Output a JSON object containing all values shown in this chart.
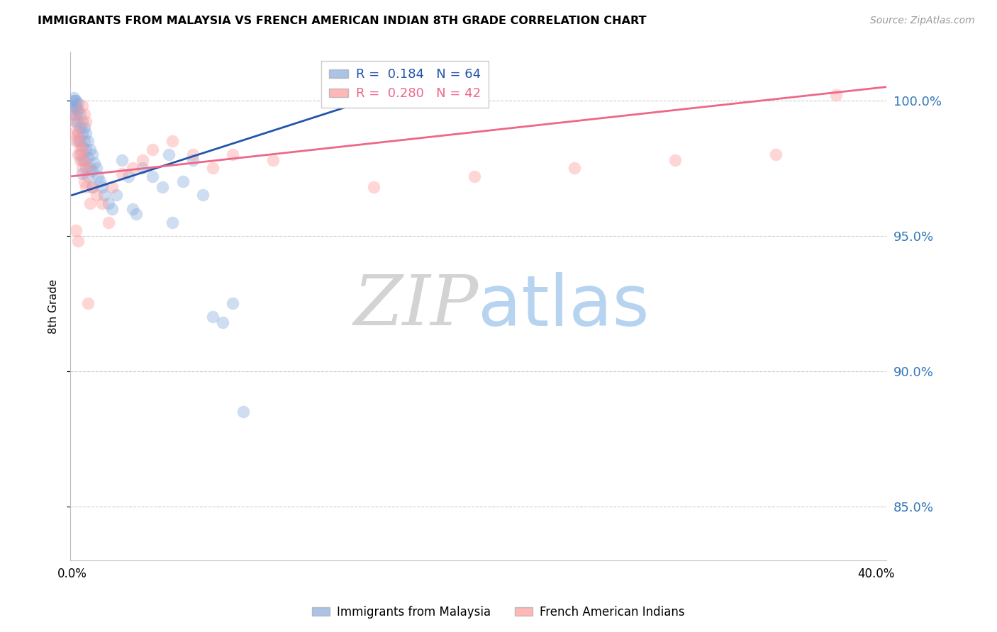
{
  "title": "IMMIGRANTS FROM MALAYSIA VS FRENCH AMERICAN INDIAN 8TH GRADE CORRELATION CHART",
  "source": "Source: ZipAtlas.com",
  "ylabel": "8th Grade",
  "yticks": [
    85.0,
    90.0,
    95.0,
    100.0
  ],
  "ytick_labels": [
    "85.0%",
    "90.0%",
    "95.0%",
    "100.0%"
  ],
  "ymin": 83.0,
  "ymax": 101.8,
  "xmin": -0.001,
  "xmax": 0.405,
  "color_blue": "#88AADD",
  "color_pink": "#FF9999",
  "line_color_blue": "#2255AA",
  "line_color_pink": "#EE6688",
  "blue_trend_x0": 0.0,
  "blue_trend_x1": 0.155,
  "blue_trend_y0": 96.5,
  "blue_trend_y1": 100.2,
  "pink_trend_x0": 0.0,
  "pink_trend_x1": 0.405,
  "pink_trend_y0": 97.2,
  "pink_trend_y1": 100.5,
  "blue_scatter_x": [
    0.0005,
    0.001,
    0.001,
    0.001,
    0.0015,
    0.0015,
    0.002,
    0.002,
    0.002,
    0.002,
    0.0025,
    0.003,
    0.003,
    0.003,
    0.003,
    0.003,
    0.004,
    0.004,
    0.004,
    0.004,
    0.005,
    0.005,
    0.005,
    0.005,
    0.005,
    0.006,
    0.006,
    0.006,
    0.007,
    0.007,
    0.007,
    0.008,
    0.008,
    0.008,
    0.009,
    0.009,
    0.01,
    0.01,
    0.01,
    0.011,
    0.012,
    0.013,
    0.014,
    0.015,
    0.016,
    0.018,
    0.02,
    0.022,
    0.025,
    0.028,
    0.03,
    0.032,
    0.035,
    0.04,
    0.045,
    0.048,
    0.05,
    0.055,
    0.06,
    0.065,
    0.07,
    0.075,
    0.08,
    0.085
  ],
  "blue_scatter_y": [
    100.0,
    100.1,
    99.8,
    99.5,
    100.0,
    99.7,
    100.0,
    99.8,
    99.5,
    99.2,
    99.7,
    99.9,
    99.6,
    99.2,
    98.8,
    98.5,
    99.5,
    99.0,
    98.5,
    98.0,
    99.2,
    98.8,
    98.3,
    97.8,
    97.3,
    99.0,
    98.5,
    97.8,
    98.8,
    98.2,
    97.5,
    98.5,
    97.9,
    97.2,
    98.2,
    97.5,
    98.0,
    97.4,
    96.8,
    97.7,
    97.5,
    97.2,
    97.0,
    96.8,
    96.5,
    96.2,
    96.0,
    96.5,
    97.8,
    97.2,
    96.0,
    95.8,
    97.5,
    97.2,
    96.8,
    98.0,
    95.5,
    97.0,
    97.8,
    96.5,
    92.0,
    91.8,
    92.5,
    88.5
  ],
  "pink_scatter_x": [
    0.001,
    0.001,
    0.002,
    0.002,
    0.003,
    0.003,
    0.004,
    0.004,
    0.005,
    0.005,
    0.006,
    0.006,
    0.007,
    0.008,
    0.009,
    0.01,
    0.012,
    0.015,
    0.018,
    0.02,
    0.025,
    0.03,
    0.035,
    0.04,
    0.05,
    0.06,
    0.07,
    0.08,
    0.1,
    0.15,
    0.2,
    0.25,
    0.3,
    0.35,
    0.002,
    0.003,
    0.004,
    0.005,
    0.006,
    0.007,
    0.38,
    0.008
  ],
  "pink_scatter_y": [
    99.5,
    98.8,
    99.2,
    98.5,
    98.8,
    98.0,
    98.5,
    97.8,
    98.2,
    97.5,
    97.8,
    97.0,
    96.8,
    97.5,
    96.2,
    96.8,
    96.5,
    96.2,
    95.5,
    96.8,
    97.3,
    97.5,
    97.8,
    98.2,
    98.5,
    98.0,
    97.5,
    98.0,
    97.8,
    96.8,
    97.2,
    97.5,
    97.8,
    98.0,
    95.2,
    94.8,
    98.2,
    99.8,
    99.5,
    99.2,
    100.2,
    92.5
  ],
  "watermark_zip_color": "#C8D8E8",
  "watermark_atlas_color": "#AACCEE",
  "background_color": "#FFFFFF",
  "legend_box_color_blue": "#88AADD",
  "legend_box_color_pink": "#FF9999",
  "legend_text_r1": "R =  0.184   N = 64",
  "legend_text_r2": "R =  0.280   N = 42",
  "legend_text_color_blue": "#2255AA",
  "legend_text_color_pink": "#EE6688"
}
